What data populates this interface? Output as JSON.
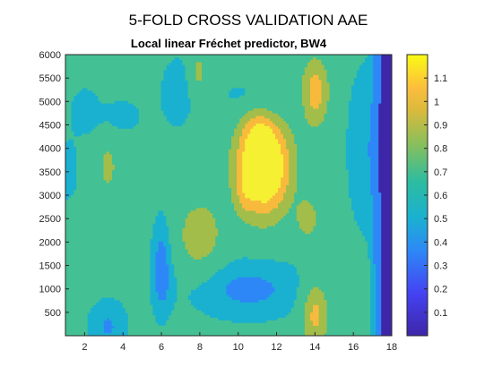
{
  "chart_data": {
    "type": "heatmap",
    "suptitle": "5-FOLD CROSS VALIDATION AAE",
    "title": "Local linear Fréchet predictor, BW4",
    "xlabel": "",
    "ylabel": "",
    "xlim": [
      1,
      18
    ],
    "ylim": [
      1,
      6000
    ],
    "x_ticks": [
      2,
      4,
      6,
      8,
      10,
      12,
      14,
      16,
      18
    ],
    "y_ticks": [
      500,
      1000,
      1500,
      2000,
      2500,
      3000,
      3500,
      4000,
      4500,
      5000,
      5500,
      6000
    ],
    "colorbar": {
      "limits": [
        0,
        1.2
      ],
      "ticks": [
        0.1,
        0.2,
        0.3,
        0.4,
        0.5,
        0.6,
        0.7,
        0.8,
        0.9,
        1,
        1.1
      ]
    },
    "contour_levels": [
      0.2,
      0.45,
      0.55,
      0.75,
      0.9,
      1.05
    ],
    "level_colors": [
      "#3e26a8",
      "#2e87f7",
      "#1ab1d0",
      "#43c094",
      "#a2bd4a",
      "#f8ba3d",
      "#f5f032"
    ],
    "grid": false,
    "legend": "none",
    "colormap": "parula"
  }
}
